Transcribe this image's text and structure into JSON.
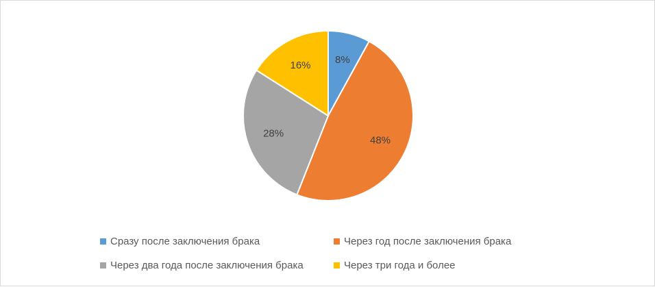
{
  "chart_data": {
    "type": "pie",
    "title": "",
    "legend_position": "bottom",
    "slices": [
      {
        "label": "Сразу после заключения брака",
        "value": 8,
        "value_label": "8%",
        "color": "#5b9bd5"
      },
      {
        "label": "Через год после заключения брака",
        "value": 48,
        "value_label": "48%",
        "color": "#ed7d31"
      },
      {
        "label": "Через два года после заключения брака",
        "value": 28,
        "value_label": "28%",
        "color": "#a5a5a5"
      },
      {
        "label": "Через три года и более",
        "value": 16,
        "value_label": "16%",
        "color": "#ffc000"
      }
    ]
  }
}
